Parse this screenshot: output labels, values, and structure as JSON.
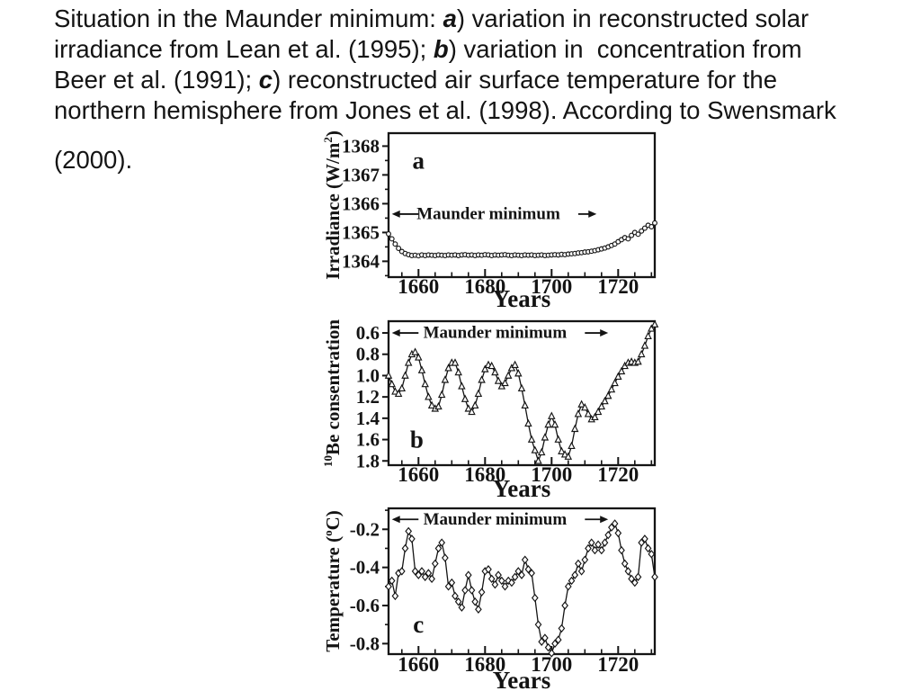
{
  "slide": {
    "background": "#ffffff",
    "text_color": "#141414",
    "ink_color": "#141414",
    "caption_lines": [
      [
        {
          "t": "Situation in the Maunder minimum: "
        },
        {
          "t": "a",
          "em": true
        },
        {
          "t": ") variation in reconstructed solar"
        }
      ],
      [
        {
          "t": "irradiance from Lean et al. (1995); "
        },
        {
          "t": "b",
          "em": true
        },
        {
          "t": ") variation in  concentration from"
        }
      ],
      [
        {
          "t": "Beer et al. (1991); "
        },
        {
          "t": "c",
          "em": true
        },
        {
          "t": ") reconstructed air surface temperature for the"
        }
      ],
      [
        {
          "t": "northern hemisphere from Jones et al. (1998). According to Swensmark"
        }
      ]
    ],
    "caption_continuation": "(2000)."
  },
  "chart_data": [
    {
      "id": "a",
      "type": "line",
      "panel_label": "a",
      "marker": "circle",
      "xlabel": "Years",
      "ylabel_segments": [
        {
          "t": "Irradiance  (W/m"
        },
        {
          "t": "2",
          "sup": true
        },
        {
          "t": ")"
        }
      ],
      "annotation": {
        "text": "Maunder minimum",
        "y": 1365.64,
        "text_x": 1681,
        "left_arrow": [
          1652,
          1660
        ],
        "right_arrow": [
          1708,
          1713.5
        ]
      },
      "panel_label_pos": {
        "x": 1660,
        "y": 1367.5
      },
      "xlim": [
        1651,
        1731
      ],
      "ylim_top": 1368.45,
      "ylim_bottom": 1363.45,
      "xticks": [
        1660,
        1680,
        1700,
        1720
      ],
      "xtick_minor_step": 5,
      "yticks": [
        1368,
        1367,
        1366,
        1365,
        1364
      ],
      "ytick_labels": [
        "1368",
        "1367",
        "1366",
        "1365",
        "1364"
      ],
      "ytick_minor_step": 0.5,
      "x_start": 1651,
      "x_step": 1,
      "values": [
        1364.95,
        1364.78,
        1364.6,
        1364.45,
        1364.34,
        1364.27,
        1364.23,
        1364.2,
        1364.21,
        1364.19,
        1364.22,
        1364.2,
        1364.22,
        1364.21,
        1364.2,
        1364.22,
        1364.21,
        1364.2,
        1364.22,
        1364.21,
        1364.22,
        1364.2,
        1364.22,
        1364.23,
        1364.21,
        1364.22,
        1364.2,
        1364.22,
        1364.21,
        1364.23,
        1364.22,
        1364.2,
        1364.22,
        1364.21,
        1364.22,
        1364.23,
        1364.21,
        1364.2,
        1364.22,
        1364.21,
        1364.2,
        1364.22,
        1364.21,
        1364.22,
        1364.2,
        1364.21,
        1364.22,
        1364.2,
        1364.21,
        1364.22,
        1364.23,
        1364.22,
        1364.24,
        1364.23,
        1364.25,
        1364.26,
        1364.27,
        1364.29,
        1364.3,
        1364.32,
        1364.33,
        1364.35,
        1364.37,
        1364.4,
        1364.43,
        1364.46,
        1364.5,
        1364.55,
        1364.6,
        1364.68,
        1364.75,
        1364.82,
        1364.78,
        1364.9,
        1365.0,
        1364.94,
        1365.05,
        1365.15,
        1365.25,
        1365.2,
        1365.33
      ]
    },
    {
      "id": "b",
      "type": "line",
      "panel_label": "b",
      "marker": "triangle",
      "xlabel": "Years",
      "ylabel_segments": [
        {
          "t": "10",
          "sup": true
        },
        {
          "t": "Be consentration"
        }
      ],
      "annotation": {
        "text": "Maunder minimum",
        "y": 0.6,
        "text_x": 1683,
        "left_arrow": [
          1652,
          1660
        ],
        "right_arrow": [
          1710,
          1717
        ]
      },
      "panel_label_pos": {
        "x": 1659.5,
        "y": 1.6
      },
      "xlim": [
        1651,
        1731
      ],
      "ylim_top": 0.49,
      "ylim_bottom": 1.84,
      "xticks": [
        1660,
        1680,
        1700,
        1720
      ],
      "xtick_minor_step": 5,
      "yticks": [
        0.6,
        0.8,
        1.0,
        1.2,
        1.4,
        1.6,
        1.8
      ],
      "ytick_labels": [
        "0.6",
        "0.8",
        "1.0",
        "1.2",
        "1.4",
        "1.6",
        "1.8"
      ],
      "ytick_minor_step": null,
      "x_start": 1651,
      "x_step": 1,
      "values": [
        1.0,
        1.08,
        1.15,
        1.17,
        1.12,
        1.0,
        0.88,
        0.8,
        0.78,
        0.83,
        0.95,
        1.08,
        1.2,
        1.28,
        1.31,
        1.29,
        1.18,
        1.04,
        0.93,
        0.88,
        0.88,
        0.97,
        1.1,
        1.22,
        1.31,
        1.34,
        1.28,
        1.17,
        1.04,
        0.94,
        0.9,
        0.91,
        0.97,
        1.05,
        1.1,
        1.07,
        1.0,
        0.93,
        0.9,
        0.98,
        1.12,
        1.28,
        1.45,
        1.6,
        1.7,
        1.8,
        1.72,
        1.58,
        1.46,
        1.38,
        1.46,
        1.6,
        1.71,
        1.74,
        1.76,
        1.66,
        1.5,
        1.36,
        1.27,
        1.3,
        1.36,
        1.41,
        1.39,
        1.34,
        1.29,
        1.24,
        1.19,
        1.13,
        1.07,
        1.01,
        0.96,
        0.91,
        0.88,
        0.87,
        0.88,
        0.87,
        0.8,
        0.72,
        0.63,
        0.56,
        0.52
      ]
    },
    {
      "id": "c",
      "type": "line",
      "panel_label": "c",
      "marker": "diamond",
      "xlabel": "Years",
      "ylabel_segments": [
        {
          "t": "Temperature ("
        },
        {
          "t": "o",
          "sup": true
        },
        {
          "t": "C)"
        }
      ],
      "annotation": {
        "text": "Maunder minimum",
        "y": -0.148,
        "text_x": 1683,
        "left_arrow": [
          1652,
          1660
        ],
        "right_arrow": [
          1710,
          1717
        ]
      },
      "panel_label_pos": {
        "x": 1660,
        "y": -0.7
      },
      "xlim": [
        1651,
        1731
      ],
      "ylim_top": -0.09,
      "ylim_bottom": -0.855,
      "xticks": [
        1660,
        1680,
        1700,
        1720
      ],
      "xtick_minor_step": 5,
      "yticks": [
        -0.2,
        -0.4,
        -0.6,
        -0.8
      ],
      "ytick_labels": [
        "-0.2",
        "-0.4",
        "-0.6",
        "-0.8"
      ],
      "ytick_minor_step": 0.1,
      "x_start": 1651,
      "x_step": 1,
      "values": [
        -0.5,
        -0.47,
        -0.55,
        -0.43,
        -0.42,
        -0.3,
        -0.21,
        -0.25,
        -0.42,
        -0.44,
        -0.42,
        -0.45,
        -0.43,
        -0.46,
        -0.38,
        -0.3,
        -0.27,
        -0.35,
        -0.5,
        -0.48,
        -0.55,
        -0.58,
        -0.61,
        -0.52,
        -0.44,
        -0.52,
        -0.58,
        -0.62,
        -0.53,
        -0.42,
        -0.41,
        -0.46,
        -0.49,
        -0.44,
        -0.47,
        -0.5,
        -0.47,
        -0.48,
        -0.45,
        -0.42,
        -0.44,
        -0.36,
        -0.41,
        -0.43,
        -0.56,
        -0.7,
        -0.79,
        -0.77,
        -0.82,
        -0.85,
        -0.8,
        -0.78,
        -0.72,
        -0.6,
        -0.5,
        -0.47,
        -0.44,
        -0.38,
        -0.42,
        -0.36,
        -0.3,
        -0.27,
        -0.31,
        -0.28,
        -0.31,
        -0.27,
        -0.23,
        -0.19,
        -0.17,
        -0.22,
        -0.31,
        -0.38,
        -0.42,
        -0.46,
        -0.48,
        -0.45,
        -0.27,
        -0.25,
        -0.3,
        -0.33,
        -0.45
      ]
    }
  ]
}
